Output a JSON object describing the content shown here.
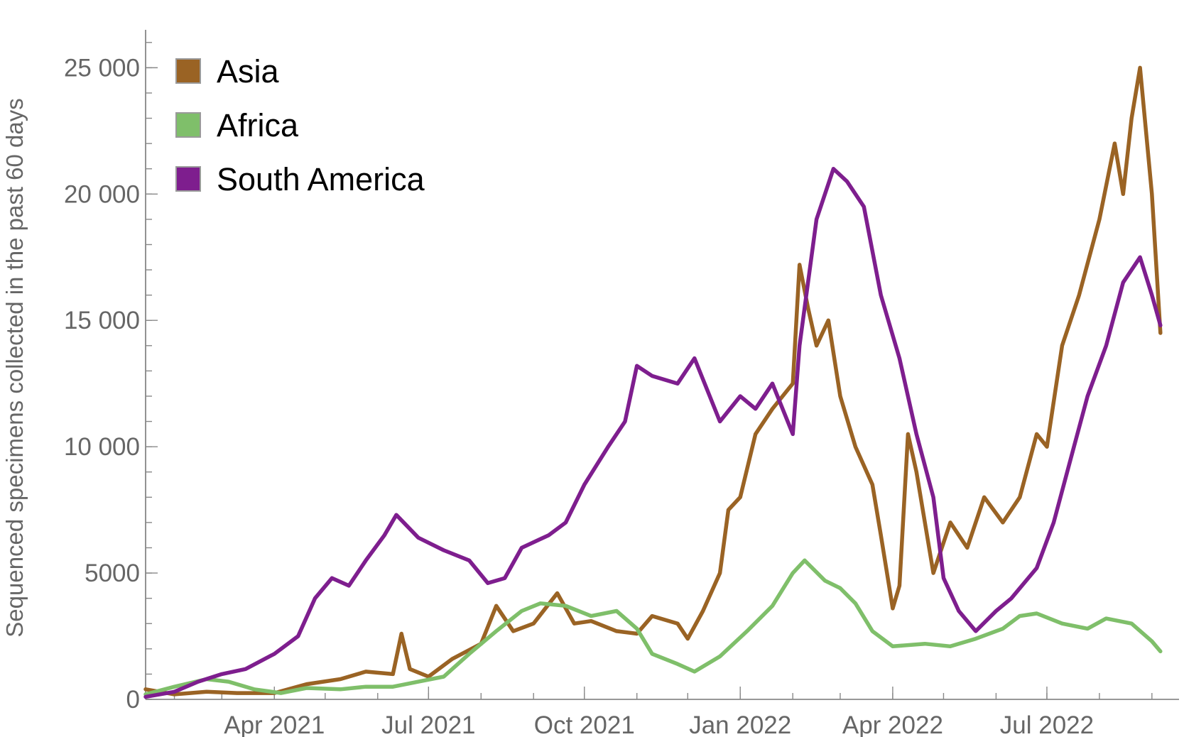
{
  "chart_data": {
    "type": "line",
    "title": "",
    "xlabel": "",
    "ylabel": "Sequenced specimens collected in the past 60 days",
    "x_axis": {
      "min": "2021-01-15",
      "max": "2022-09-17",
      "tick_labels": [
        "Apr 2021",
        "Jul 2021",
        "Oct 2021",
        "Jan 2022",
        "Apr 2022",
        "Jul 2022"
      ],
      "tick_dates": [
        "2021-04-01",
        "2021-07-01",
        "2021-10-01",
        "2022-01-01",
        "2022-04-01",
        "2022-07-01"
      ]
    },
    "ylim": [
      0,
      26500
    ],
    "y_ticks": [
      0,
      5000,
      10000,
      15000,
      20000,
      25000
    ],
    "y_tick_labels": [
      "0",
      "5000",
      "10 000",
      "15 000",
      "20 000",
      "25 000"
    ],
    "grid": false,
    "legend": {
      "position": "top-left"
    },
    "series": [
      {
        "name": "Asia",
        "color": "#9a6324",
        "points": [
          [
            "2021-01-15",
            400
          ],
          [
            "2021-02-01",
            200
          ],
          [
            "2021-02-20",
            300
          ],
          [
            "2021-03-10",
            250
          ],
          [
            "2021-04-01",
            250
          ],
          [
            "2021-04-20",
            600
          ],
          [
            "2021-05-10",
            800
          ],
          [
            "2021-05-25",
            1100
          ],
          [
            "2021-06-10",
            1000
          ],
          [
            "2021-06-15",
            2600
          ],
          [
            "2021-06-20",
            1200
          ],
          [
            "2021-07-01",
            900
          ],
          [
            "2021-07-15",
            1600
          ],
          [
            "2021-08-01",
            2200
          ],
          [
            "2021-08-10",
            3700
          ],
          [
            "2021-08-20",
            2700
          ],
          [
            "2021-09-01",
            3000
          ],
          [
            "2021-09-15",
            4200
          ],
          [
            "2021-09-25",
            3000
          ],
          [
            "2021-10-05",
            3100
          ],
          [
            "2021-10-20",
            2700
          ],
          [
            "2021-11-01",
            2600
          ],
          [
            "2021-11-10",
            3300
          ],
          [
            "2021-11-25",
            3000
          ],
          [
            "2021-12-01",
            2400
          ],
          [
            "2021-12-10",
            3500
          ],
          [
            "2021-12-20",
            5000
          ],
          [
            "2021-12-25",
            7500
          ],
          [
            "2022-01-01",
            8000
          ],
          [
            "2022-01-10",
            10500
          ],
          [
            "2022-01-20",
            11500
          ],
          [
            "2022-02-01",
            12500
          ],
          [
            "2022-02-05",
            17200
          ],
          [
            "2022-02-10",
            15500
          ],
          [
            "2022-02-15",
            14000
          ],
          [
            "2022-02-22",
            15000
          ],
          [
            "2022-03-01",
            12000
          ],
          [
            "2022-03-10",
            10000
          ],
          [
            "2022-03-20",
            8500
          ],
          [
            "2022-03-25",
            6500
          ],
          [
            "2022-04-01",
            3600
          ],
          [
            "2022-04-05",
            4500
          ],
          [
            "2022-04-10",
            10500
          ],
          [
            "2022-04-15",
            9000
          ],
          [
            "2022-04-25",
            5000
          ],
          [
            "2022-05-05",
            7000
          ],
          [
            "2022-05-15",
            6000
          ],
          [
            "2022-05-25",
            8000
          ],
          [
            "2022-06-05",
            7000
          ],
          [
            "2022-06-15",
            8000
          ],
          [
            "2022-06-25",
            10500
          ],
          [
            "2022-07-01",
            10000
          ],
          [
            "2022-07-10",
            14000
          ],
          [
            "2022-07-20",
            16000
          ],
          [
            "2022-08-01",
            19000
          ],
          [
            "2022-08-10",
            22000
          ],
          [
            "2022-08-15",
            20000
          ],
          [
            "2022-08-20",
            23000
          ],
          [
            "2022-08-25",
            25000
          ],
          [
            "2022-09-01",
            20000
          ],
          [
            "2022-09-06",
            14500
          ]
        ]
      },
      {
        "name": "Africa",
        "color": "#7fbf6a",
        "points": [
          [
            "2021-01-15",
            200
          ],
          [
            "2021-02-01",
            500
          ],
          [
            "2021-02-20",
            800
          ],
          [
            "2021-03-05",
            700
          ],
          [
            "2021-03-20",
            400
          ],
          [
            "2021-04-05",
            250
          ],
          [
            "2021-04-20",
            450
          ],
          [
            "2021-05-10",
            400
          ],
          [
            "2021-05-25",
            500
          ],
          [
            "2021-06-10",
            500
          ],
          [
            "2021-06-25",
            700
          ],
          [
            "2021-07-10",
            900
          ],
          [
            "2021-07-25",
            1800
          ],
          [
            "2021-08-10",
            2700
          ],
          [
            "2021-08-25",
            3500
          ],
          [
            "2021-09-05",
            3800
          ],
          [
            "2021-09-20",
            3700
          ],
          [
            "2021-10-05",
            3300
          ],
          [
            "2021-10-20",
            3500
          ],
          [
            "2021-11-01",
            2800
          ],
          [
            "2021-11-10",
            1800
          ],
          [
            "2021-11-25",
            1400
          ],
          [
            "2021-12-05",
            1100
          ],
          [
            "2021-12-20",
            1700
          ],
          [
            "2022-01-05",
            2700
          ],
          [
            "2022-01-20",
            3700
          ],
          [
            "2022-02-01",
            5000
          ],
          [
            "2022-02-08",
            5500
          ],
          [
            "2022-02-20",
            4700
          ],
          [
            "2022-03-01",
            4400
          ],
          [
            "2022-03-10",
            3800
          ],
          [
            "2022-03-20",
            2700
          ],
          [
            "2022-04-01",
            2100
          ],
          [
            "2022-04-20",
            2200
          ],
          [
            "2022-05-05",
            2100
          ],
          [
            "2022-05-20",
            2400
          ],
          [
            "2022-06-05",
            2800
          ],
          [
            "2022-06-15",
            3300
          ],
          [
            "2022-06-25",
            3400
          ],
          [
            "2022-07-10",
            3000
          ],
          [
            "2022-07-25",
            2800
          ],
          [
            "2022-08-05",
            3200
          ],
          [
            "2022-08-20",
            3000
          ],
          [
            "2022-09-01",
            2300
          ],
          [
            "2022-09-06",
            1900
          ]
        ]
      },
      {
        "name": "South America",
        "color": "#7e1e8e",
        "points": [
          [
            "2021-01-15",
            100
          ],
          [
            "2021-02-01",
            300
          ],
          [
            "2021-02-15",
            700
          ],
          [
            "2021-03-01",
            1000
          ],
          [
            "2021-03-15",
            1200
          ],
          [
            "2021-04-01",
            1800
          ],
          [
            "2021-04-15",
            2500
          ],
          [
            "2021-04-25",
            4000
          ],
          [
            "2021-05-05",
            4800
          ],
          [
            "2021-05-15",
            4500
          ],
          [
            "2021-05-25",
            5500
          ],
          [
            "2021-06-05",
            6500
          ],
          [
            "2021-06-12",
            7300
          ],
          [
            "2021-06-25",
            6400
          ],
          [
            "2021-07-10",
            5900
          ],
          [
            "2021-07-25",
            5500
          ],
          [
            "2021-08-05",
            4600
          ],
          [
            "2021-08-15",
            4800
          ],
          [
            "2021-08-25",
            6000
          ],
          [
            "2021-09-10",
            6500
          ],
          [
            "2021-09-20",
            7000
          ],
          [
            "2021-10-01",
            8500
          ],
          [
            "2021-10-15",
            10000
          ],
          [
            "2021-10-25",
            11000
          ],
          [
            "2021-11-01",
            13200
          ],
          [
            "2021-11-10",
            12800
          ],
          [
            "2021-11-25",
            12500
          ],
          [
            "2021-12-05",
            13500
          ],
          [
            "2021-12-20",
            11000
          ],
          [
            "2022-01-01",
            12000
          ],
          [
            "2022-01-10",
            11500
          ],
          [
            "2022-01-20",
            12500
          ],
          [
            "2022-02-01",
            10500
          ],
          [
            "2022-02-05",
            14000
          ],
          [
            "2022-02-15",
            19000
          ],
          [
            "2022-02-25",
            21000
          ],
          [
            "2022-03-05",
            20500
          ],
          [
            "2022-03-15",
            19500
          ],
          [
            "2022-03-25",
            16000
          ],
          [
            "2022-04-05",
            13500
          ],
          [
            "2022-04-15",
            10500
          ],
          [
            "2022-04-25",
            8000
          ],
          [
            "2022-05-01",
            4800
          ],
          [
            "2022-05-10",
            3500
          ],
          [
            "2022-05-20",
            2700
          ],
          [
            "2022-06-01",
            3500
          ],
          [
            "2022-06-10",
            4000
          ],
          [
            "2022-06-25",
            5200
          ],
          [
            "2022-07-05",
            7000
          ],
          [
            "2022-07-15",
            9500
          ],
          [
            "2022-07-25",
            12000
          ],
          [
            "2022-08-05",
            14000
          ],
          [
            "2022-08-15",
            16500
          ],
          [
            "2022-08-25",
            17500
          ],
          [
            "2022-09-01",
            16000
          ],
          [
            "2022-09-06",
            14800
          ]
        ]
      }
    ]
  }
}
